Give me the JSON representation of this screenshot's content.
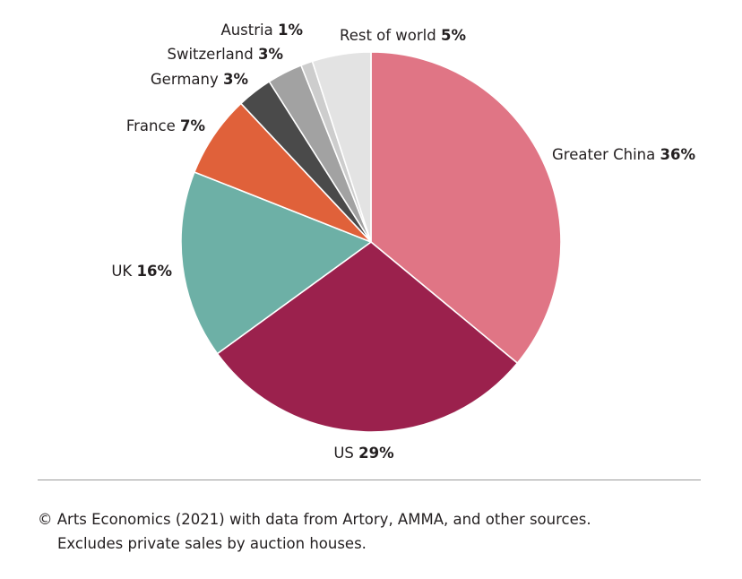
{
  "chart_data": {
    "type": "pie",
    "start_angle_deg": 0,
    "direction": "clockwise",
    "slices": [
      {
        "label": "Greater China",
        "value": 36,
        "pct_text": "36%",
        "color": "#e07585",
        "label_anchor": "start"
      },
      {
        "label": "US",
        "value": 29,
        "pct_text": "29%",
        "color": "#9b214d",
        "label_anchor": "middle"
      },
      {
        "label": "UK",
        "value": 16,
        "pct_text": "16%",
        "color": "#6db0a6",
        "label_anchor": "end"
      },
      {
        "label": "France",
        "value": 7,
        "pct_text": "7%",
        "color": "#e0613a",
        "label_anchor": "end"
      },
      {
        "label": "Germany",
        "value": 3,
        "pct_text": "3%",
        "color": "#4a4a4a",
        "label_anchor": "end"
      },
      {
        "label": "Switzerland",
        "value": 3,
        "pct_text": "3%",
        "color": "#a2a2a2",
        "label_anchor": "end"
      },
      {
        "label": "Austria",
        "value": 1,
        "pct_text": "1%",
        "color": "#cdcdcd",
        "label_anchor": "end"
      },
      {
        "label": "Rest of world",
        "value": 5,
        "pct_text": "5%",
        "color": "#e3e3e3",
        "label_anchor": "end"
      }
    ]
  },
  "source": {
    "line1": "© Arts Economics (2021) with data from Artory, AMMA, and other sources.",
    "line2": "Excludes private sales by auction houses."
  }
}
